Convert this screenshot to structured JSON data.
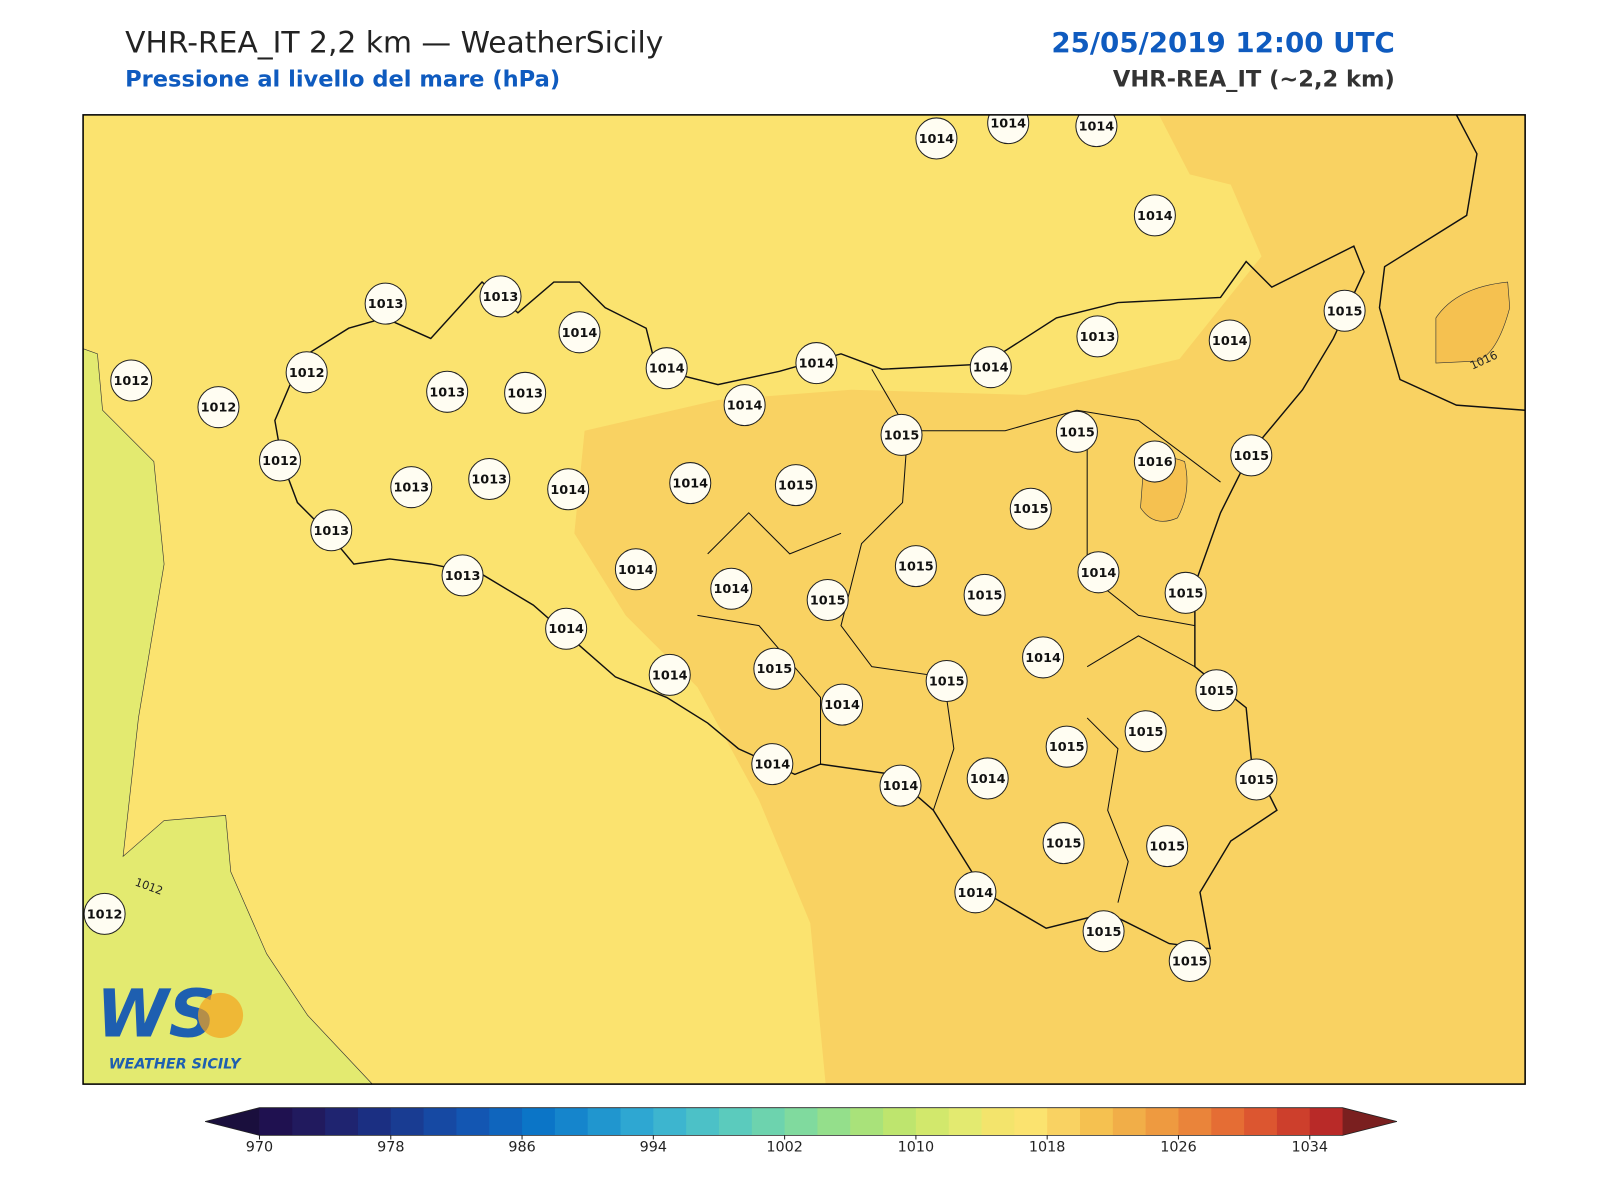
{
  "header": {
    "title": "VHR-REA_IT 2,2 km — WeatherSicily",
    "subtitle": "Pressione al livello del mare (hPa)",
    "datetime": "25/05/2019 12:00 UTC",
    "model": "VHR-REA_IT (~2,2 km)"
  },
  "map": {
    "stations": [
      1014,
      1014,
      1014,
      1014,
      1013,
      1013,
      1014,
      1014,
      1014,
      1014,
      1013,
      1014,
      1015,
      1012,
      1012,
      1012,
      1013,
      1013,
      1014,
      1015,
      1015,
      1016,
      1015,
      1012,
      1013,
      1013,
      1014,
      1014,
      1015,
      1015,
      1013,
      1015,
      1014,
      1014,
      1015,
      1015,
      1014,
      1015,
      1013,
      1014,
      1014,
      1014,
      1015,
      1015,
      1015,
      1014,
      1015,
      1015,
      1014,
      1014,
      1014,
      1015,
      1015,
      1015,
      1014,
      1015,
      1015,
      1012
    ],
    "contour_labels": [
      1012,
      1016
    ]
  },
  "colorbar": {
    "clim": [
      970,
      1036
    ],
    "ticks": [
      970,
      978,
      986,
      994,
      1002,
      1010,
      1018,
      1026,
      1034
    ],
    "colors": [
      "#1f1150",
      "#211a5e",
      "#1f2470",
      "#1b2f82",
      "#193c92",
      "#1649a3",
      "#1356b2",
      "#0f65bd",
      "#0b75c7",
      "#1585cc",
      "#2096cf",
      "#2ea7d2",
      "#3db5cf",
      "#4cc1c7",
      "#5bcbbd",
      "#6dd3ae",
      "#80da9e",
      "#94df8b",
      "#a9e27a",
      "#bee56e",
      "#d2e86c",
      "#e3ea70",
      "#f3e46c",
      "#fbe36f",
      "#f9d262",
      "#f5c150",
      "#f1ae48",
      "#ee9a40",
      "#ea843a",
      "#e56d34",
      "#dc5630",
      "#cd3f2c",
      "#b92a28"
    ],
    "extend_colors": [
      "#1a0f3d",
      "#7a1f1f"
    ]
  },
  "logo": {
    "mark": "WS",
    "name": "WEATHER SICILY"
  }
}
